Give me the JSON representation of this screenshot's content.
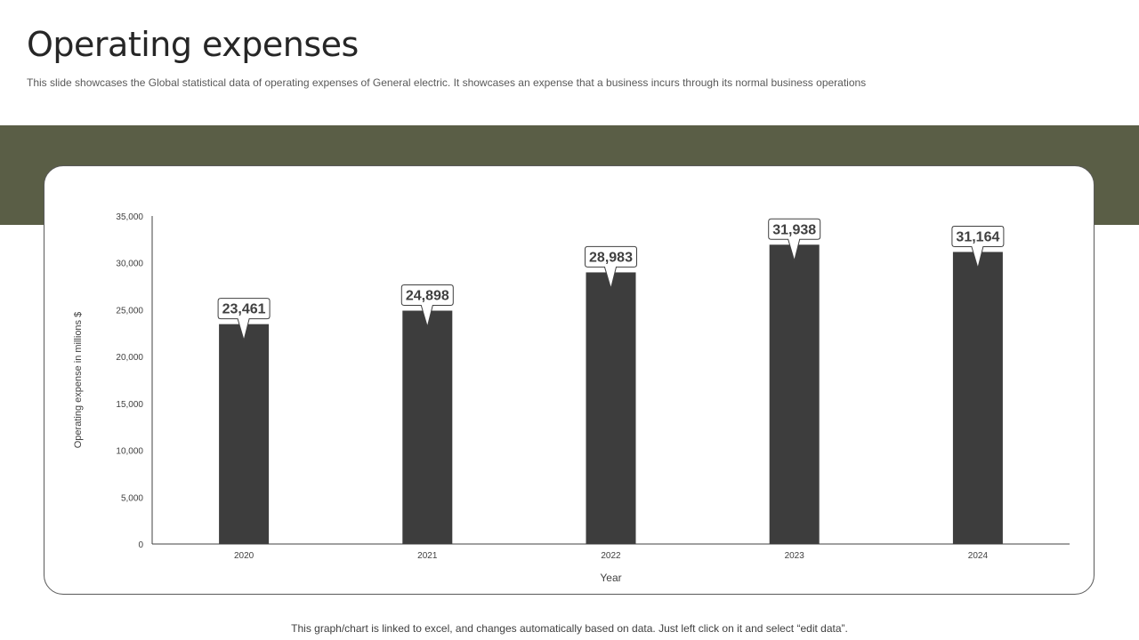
{
  "slide": {
    "title": "Operating expenses",
    "subtitle": "This slide showcases the Global statistical data of operating expenses of General electric. It showcases an expense that a business incurs through its normal business operations",
    "footer": "This graph/chart is linked to excel, and changes automatically based on data. Just left click on it and select “edit data”."
  },
  "colors": {
    "band": "#5a5e46",
    "bar": "#3d3d3d",
    "axis": "#404040",
    "text": "#404040"
  },
  "chart_data": {
    "type": "bar",
    "categories": [
      "2020",
      "2021",
      "2022",
      "2023",
      "2024"
    ],
    "values": [
      23461,
      24898,
      28983,
      31938,
      31164
    ],
    "data_labels": [
      "23,461",
      "24,898",
      "28,983",
      "31,938",
      "31,164"
    ],
    "xlabel": "Year",
    "ylabel": "Operating expense in millions $",
    "ylim": [
      0,
      35000
    ],
    "yticks": [
      0,
      5000,
      10000,
      15000,
      20000,
      25000,
      30000,
      35000
    ],
    "ytick_labels": [
      "0",
      "5,000",
      "10,000",
      "15,000",
      "20,000",
      "25,000",
      "30,000",
      "35,000"
    ],
    "grid": false,
    "legend": "none",
    "data_label_style": "callout"
  }
}
